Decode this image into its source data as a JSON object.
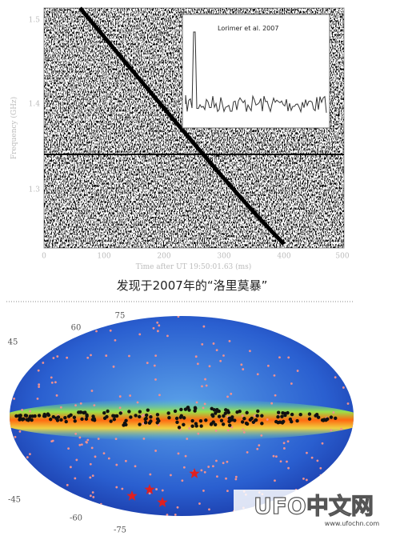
{
  "figure1": {
    "y_axis_label": "Frequency (GHz)",
    "yticks": [
      "1.5",
      "1.4",
      "1.3"
    ],
    "xticks": [
      "0",
      "100",
      "200",
      "300",
      "400",
      "500"
    ],
    "x_axis_label": "Time after UT 19:50:01.63 (ms)",
    "inset_label": "Lorimer et al. 2007",
    "caption": "发现于2007年的“洛里莫暴”"
  },
  "figure2": {
    "latitude_labels": [
      "75",
      "60",
      "45",
      "-45",
      "-60",
      "-75"
    ]
  },
  "watermark": {
    "logo": "UFO中文网",
    "url": "www.ufochn.com"
  }
}
